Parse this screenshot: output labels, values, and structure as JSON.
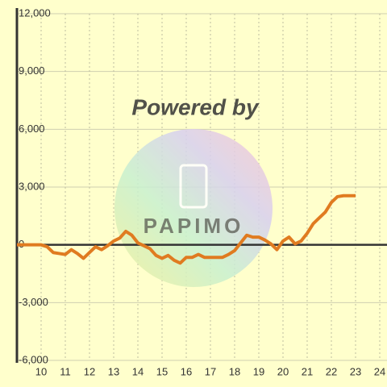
{
  "chart_data": {
    "type": "line",
    "watermark": [
      "Powered by",
      "PAPIMO"
    ],
    "x": [
      9,
      9.5,
      10,
      10.25,
      10.5,
      10.75,
      11,
      11.25,
      11.5,
      11.75,
      12,
      12.25,
      12.5,
      12.75,
      13,
      13.25,
      13.5,
      13.75,
      14,
      14.25,
      14.5,
      14.75,
      15,
      15.25,
      15.5,
      15.75,
      16,
      16.25,
      16.5,
      16.75,
      17,
      17.5,
      17.75,
      18,
      18.25,
      18.5,
      18.75,
      19,
      19.25,
      19.5,
      19.75,
      20,
      20.25,
      20.5,
      20.75,
      21,
      21.25,
      21.5,
      21.75,
      22,
      22.25,
      22.5,
      23
    ],
    "series": [
      {
        "color": "#e07b20",
        "values": [
          0,
          0,
          0,
          -100,
          -400,
          -450,
          -500,
          -250,
          -450,
          -700,
          -400,
          -100,
          -250,
          -50,
          200,
          350,
          700,
          500,
          100,
          -50,
          -200,
          -550,
          -700,
          -550,
          -800,
          -950,
          -650,
          -650,
          -500,
          -650,
          -650,
          -650,
          -500,
          -300,
          100,
          500,
          400,
          400,
          250,
          50,
          -250,
          200,
          400,
          50,
          200,
          600,
          1100,
          1400,
          1700,
          2200,
          2500,
          2550,
          2550
        ]
      }
    ],
    "xlim": [
      9,
      24.3
    ],
    "xticks": [
      10,
      11,
      12,
      13,
      14,
      15,
      16,
      17,
      18,
      19,
      20,
      21,
      22,
      23,
      24
    ],
    "ylim": [
      -6000,
      12000
    ],
    "yticks": [
      {
        "value": -6000,
        "label": "-6,000"
      },
      {
        "value": -3000,
        "label": "-3,000"
      },
      0,
      {
        "value": 3000,
        "label": "3,000"
      },
      {
        "value": 6000,
        "label": "6,000"
      },
      {
        "value": 9000,
        "label": "9,000"
      },
      {
        "value": 12000,
        "label": "12,000"
      }
    ],
    "grid": true
  }
}
